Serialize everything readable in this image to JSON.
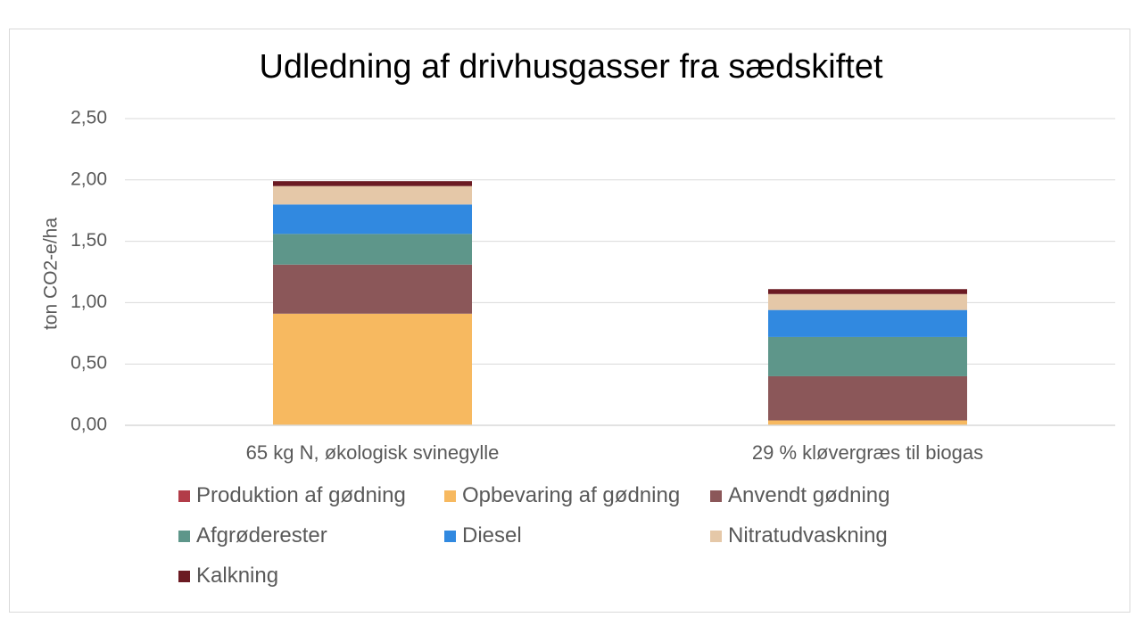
{
  "chart_data": {
    "type": "bar",
    "stacked": true,
    "title": "Udledning af drivhusgasser fra sædskiftet",
    "ylabel": "ton CO2-e/ha",
    "xlabel": "",
    "ylim": [
      0,
      2.5
    ],
    "yticks": [
      "0,00",
      "0,50",
      "1,00",
      "1,50",
      "2,00",
      "2,50"
    ],
    "ytick_values": [
      0,
      0.5,
      1.0,
      1.5,
      2.0,
      2.5
    ],
    "grid": true,
    "legend_position": "bottom",
    "categories": [
      "65 kg N, økologisk svinegylle",
      "29 % kløvergræs til biogas"
    ],
    "series": [
      {
        "name": "Produktion af gødning",
        "color": "#b23c48",
        "values": [
          0.0,
          0.0
        ]
      },
      {
        "name": "Opbevaring af gødning",
        "color": "#f7b960",
        "values": [
          0.91,
          0.04
        ]
      },
      {
        "name": "Anvendt gødning",
        "color": "#8b5759",
        "values": [
          0.4,
          0.36
        ]
      },
      {
        "name": "Afgrøderester",
        "color": "#5e968a",
        "values": [
          0.25,
          0.32
        ]
      },
      {
        "name": "Diesel",
        "color": "#3189e0",
        "values": [
          0.24,
          0.22
        ]
      },
      {
        "name": "Nitratudvaskning",
        "color": "#e5c8a8",
        "values": [
          0.15,
          0.13
        ]
      },
      {
        "name": "Kalkning",
        "color": "#6b1a22",
        "values": [
          0.04,
          0.04
        ]
      }
    ]
  }
}
